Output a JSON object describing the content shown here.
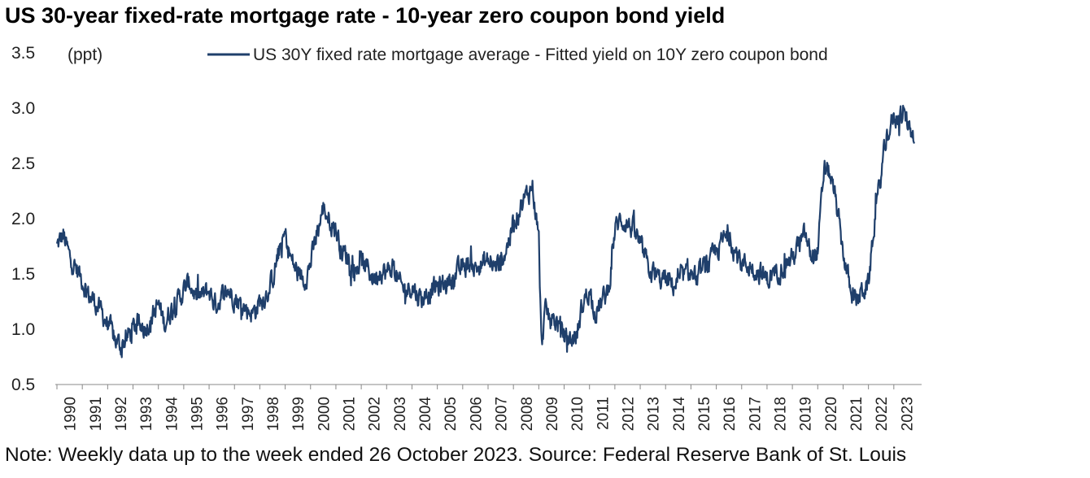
{
  "title": "US 30-year fixed-rate mortgage rate - 10-year zero coupon bond yield",
  "note": "Note: Weekly data up to the week ended 26 October 2023. Source: Federal Reserve Bank of St. Louis",
  "chart_data": {
    "type": "line",
    "unit_label": "(ppt)",
    "ylim": [
      0.5,
      3.5
    ],
    "yticks": [
      "0.5",
      "1.0",
      "1.5",
      "2.0",
      "2.5",
      "3.0",
      "3.5"
    ],
    "categories": [
      "1990",
      "1991",
      "1992",
      "1993",
      "1994",
      "1995",
      "1996",
      "1997",
      "1998",
      "1999",
      "2000",
      "2001",
      "2002",
      "2003",
      "2004",
      "2005",
      "2006",
      "2007",
      "2008",
      "2009",
      "2010",
      "2011",
      "2012",
      "2013",
      "2014",
      "2015",
      "2016",
      "2017",
      "2018",
      "2019",
      "2020",
      "2021",
      "2022",
      "2023"
    ],
    "grid": false,
    "legend": "top",
    "series": [
      {
        "name": "US 30Y fixed rate mortgage average - Fitted yield on 10Y zero coupon bond",
        "color": "#1f3f6b",
        "points": [
          [
            1990.0,
            1.75
          ],
          [
            1990.25,
            1.85
          ],
          [
            1990.5,
            1.65
          ],
          [
            1990.75,
            1.55
          ],
          [
            1991.0,
            1.45
          ],
          [
            1991.25,
            1.3
          ],
          [
            1991.5,
            1.25
          ],
          [
            1991.75,
            1.15
          ],
          [
            1992.0,
            1.05
          ],
          [
            1992.25,
            0.92
          ],
          [
            1992.5,
            0.85
          ],
          [
            1992.75,
            0.92
          ],
          [
            1993.0,
            1.0
          ],
          [
            1993.25,
            1.05
          ],
          [
            1993.5,
            1.02
          ],
          [
            1993.75,
            1.12
          ],
          [
            1994.0,
            1.22
          ],
          [
            1994.25,
            1.05
          ],
          [
            1994.5,
            1.18
          ],
          [
            1994.75,
            1.25
          ],
          [
            1995.0,
            1.35
          ],
          [
            1995.25,
            1.42
          ],
          [
            1995.5,
            1.28
          ],
          [
            1995.75,
            1.3
          ],
          [
            1996.0,
            1.35
          ],
          [
            1996.25,
            1.22
          ],
          [
            1996.5,
            1.3
          ],
          [
            1996.75,
            1.35
          ],
          [
            1997.0,
            1.3
          ],
          [
            1997.25,
            1.22
          ],
          [
            1997.5,
            1.18
          ],
          [
            1997.75,
            1.15
          ],
          [
            1998.0,
            1.25
          ],
          [
            1998.25,
            1.32
          ],
          [
            1998.5,
            1.45
          ],
          [
            1998.75,
            1.7
          ],
          [
            1999.0,
            1.85
          ],
          [
            1999.25,
            1.62
          ],
          [
            1999.5,
            1.5
          ],
          [
            1999.75,
            1.45
          ],
          [
            2000.0,
            1.6
          ],
          [
            2000.25,
            1.85
          ],
          [
            2000.5,
            2.1
          ],
          [
            2000.75,
            2.0
          ],
          [
            2001.0,
            1.9
          ],
          [
            2001.25,
            1.7
          ],
          [
            2001.5,
            1.65
          ],
          [
            2001.75,
            1.55
          ],
          [
            2002.0,
            1.6
          ],
          [
            2002.25,
            1.55
          ],
          [
            2002.5,
            1.45
          ],
          [
            2002.75,
            1.55
          ],
          [
            2003.0,
            1.5
          ],
          [
            2003.25,
            1.58
          ],
          [
            2003.5,
            1.4
          ],
          [
            2003.75,
            1.35
          ],
          [
            2004.0,
            1.4
          ],
          [
            2004.25,
            1.3
          ],
          [
            2004.5,
            1.28
          ],
          [
            2004.75,
            1.35
          ],
          [
            2005.0,
            1.38
          ],
          [
            2005.25,
            1.4
          ],
          [
            2005.5,
            1.45
          ],
          [
            2005.75,
            1.5
          ],
          [
            2006.0,
            1.55
          ],
          [
            2006.25,
            1.6
          ],
          [
            2006.5,
            1.55
          ],
          [
            2006.75,
            1.58
          ],
          [
            2007.0,
            1.62
          ],
          [
            2007.25,
            1.55
          ],
          [
            2007.5,
            1.6
          ],
          [
            2007.75,
            1.75
          ],
          [
            2008.0,
            1.95
          ],
          [
            2008.25,
            2.1
          ],
          [
            2008.5,
            2.2
          ],
          [
            2008.75,
            2.3
          ],
          [
            2009.0,
            1.8
          ],
          [
            2009.1,
            0.85
          ],
          [
            2009.25,
            1.15
          ],
          [
            2009.5,
            1.1
          ],
          [
            2009.75,
            1.05
          ],
          [
            2010.0,
            0.95
          ],
          [
            2010.25,
            0.9
          ],
          [
            2010.5,
            0.95
          ],
          [
            2010.75,
            1.25
          ],
          [
            2011.0,
            1.35
          ],
          [
            2011.25,
            1.15
          ],
          [
            2011.5,
            1.25
          ],
          [
            2011.75,
            1.35
          ],
          [
            2012.0,
            1.9
          ],
          [
            2012.25,
            2.0
          ],
          [
            2012.5,
            1.95
          ],
          [
            2012.75,
            1.9
          ],
          [
            2013.0,
            1.75
          ],
          [
            2013.25,
            1.6
          ],
          [
            2013.5,
            1.5
          ],
          [
            2013.75,
            1.45
          ],
          [
            2014.0,
            1.45
          ],
          [
            2014.25,
            1.4
          ],
          [
            2014.5,
            1.42
          ],
          [
            2014.75,
            1.48
          ],
          [
            2015.0,
            1.5
          ],
          [
            2015.25,
            1.45
          ],
          [
            2015.5,
            1.55
          ],
          [
            2015.75,
            1.6
          ],
          [
            2016.0,
            1.7
          ],
          [
            2016.25,
            1.8
          ],
          [
            2016.5,
            1.85
          ],
          [
            2016.75,
            1.7
          ],
          [
            2017.0,
            1.6
          ],
          [
            2017.25,
            1.58
          ],
          [
            2017.5,
            1.55
          ],
          [
            2017.75,
            1.5
          ],
          [
            2018.0,
            1.45
          ],
          [
            2018.25,
            1.5
          ],
          [
            2018.5,
            1.55
          ],
          [
            2018.75,
            1.6
          ],
          [
            2019.0,
            1.65
          ],
          [
            2019.25,
            1.75
          ],
          [
            2019.5,
            1.85
          ],
          [
            2019.75,
            1.65
          ],
          [
            2020.0,
            1.7
          ],
          [
            2020.25,
            2.45
          ],
          [
            2020.5,
            2.4
          ],
          [
            2020.75,
            2.1
          ],
          [
            2021.0,
            1.7
          ],
          [
            2021.25,
            1.4
          ],
          [
            2021.5,
            1.25
          ],
          [
            2021.75,
            1.35
          ],
          [
            2022.0,
            1.4
          ],
          [
            2022.25,
            2.0
          ],
          [
            2022.5,
            2.4
          ],
          [
            2022.75,
            2.8
          ],
          [
            2023.0,
            2.9
          ],
          [
            2023.25,
            2.95
          ],
          [
            2023.5,
            2.9
          ],
          [
            2023.82,
            2.75
          ]
        ]
      }
    ]
  }
}
